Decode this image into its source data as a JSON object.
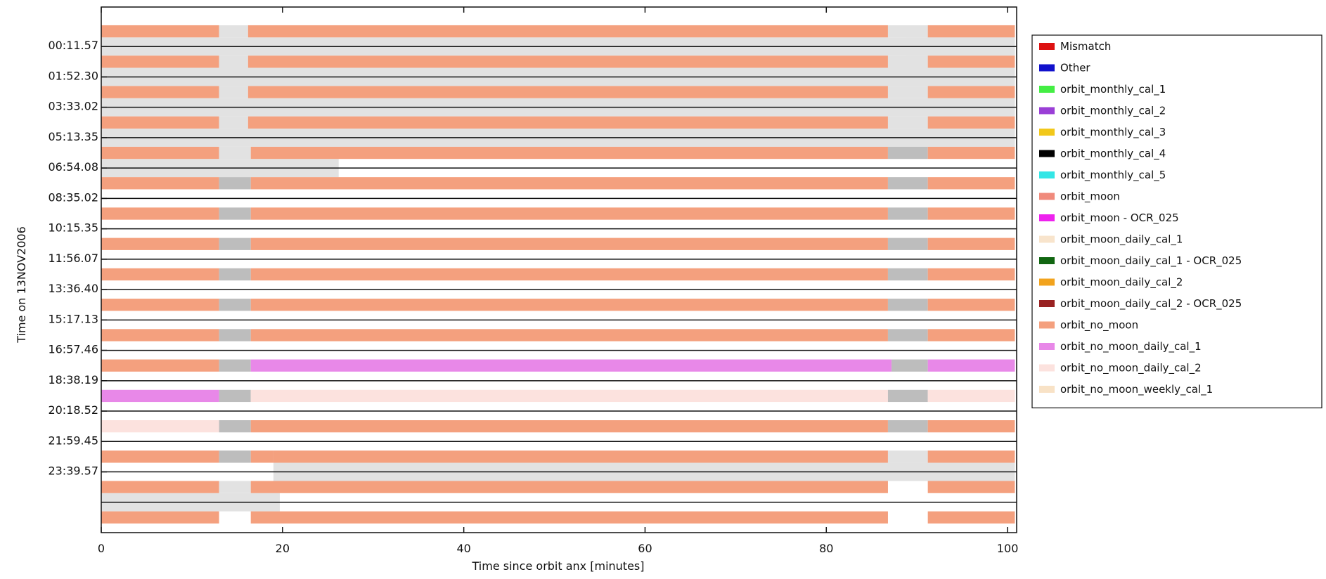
{
  "chart_data": {
    "type": "bar",
    "xlabel": "Time since orbit anx [minutes]",
    "ylabel": "Time on 13NOV2006",
    "xlim": [
      0,
      101
    ],
    "xticks": [
      "0",
      "20",
      "40",
      "60",
      "80",
      "100"
    ],
    "xtick_values": [
      0,
      20,
      40,
      60,
      80,
      100
    ],
    "yticks": [
      "00:11.57",
      "01:52.30",
      "03:33.02",
      "05:13.35",
      "06:54.08",
      "08:35.02",
      "10:15.35",
      "11:56.07",
      "13:36.40",
      "15:17.13",
      "16:57.46",
      "18:38.19",
      "20:18.52",
      "21:59.45",
      "23:39.57"
    ],
    "grid": false,
    "legend_position": "right",
    "colors": {
      "Mismatch": "#dd1111",
      "Other": "#1111cc",
      "orbit_monthly_cal_1": "#44ee44",
      "orbit_monthly_cal_2": "#9a3fd6",
      "orbit_monthly_cal_3": "#f2c81a",
      "orbit_monthly_cal_4": "#000000",
      "orbit_monthly_cal_5": "#33e6e6",
      "orbit_moon": "#f08a7c",
      "orbit_moon - OCR_025": "#ee22ee",
      "orbit_moon_daily_cal_1": "#f8e4cc",
      "orbit_moon_daily_cal_1 - OCR_025": "#116611",
      "orbit_moon_daily_cal_2": "#f2a31d",
      "orbit_moon_daily_cal_2 - OCR_025": "#992222",
      "orbit_no_moon": "#f4a07e",
      "orbit_no_moon_daily_cal_1": "#e888e8",
      "orbit_no_moon_daily_cal_2": "#fce2de",
      "orbit_no_moon_weekly_cal_1": "#f8e2c6",
      "gap_light": "#e2e2e2",
      "gap_dark": "#bdbdbd"
    },
    "legend": [
      "Mismatch",
      "Other",
      "orbit_monthly_cal_1",
      "orbit_monthly_cal_2",
      "orbit_monthly_cal_3",
      "orbit_monthly_cal_4",
      "orbit_monthly_cal_5",
      "orbit_moon",
      "orbit_moon - OCR_025",
      "orbit_moon_daily_cal_1",
      "orbit_moon_daily_cal_1 - OCR_025",
      "orbit_moon_daily_cal_2",
      "orbit_moon_daily_cal_2 - OCR_025",
      "orbit_no_moon",
      "orbit_no_moon_daily_cal_1",
      "orbit_no_moon_daily_cal_2",
      "orbit_no_moon_weekly_cal_1"
    ],
    "orbits": [
      {
        "segments": [
          [
            0,
            13,
            "orbit_no_moon"
          ],
          [
            13,
            16.2,
            "gap_light"
          ],
          [
            16.2,
            86.8,
            "orbit_no_moon"
          ],
          [
            86.8,
            91.2,
            "gap_light"
          ],
          [
            91.2,
            100.8,
            "orbit_no_moon"
          ]
        ]
      },
      {
        "segments": [
          [
            0,
            13,
            "orbit_no_moon"
          ],
          [
            13,
            16.2,
            "gap_light"
          ],
          [
            16.2,
            86.8,
            "orbit_no_moon"
          ],
          [
            86.8,
            91.2,
            "gap_light"
          ],
          [
            91.2,
            100.8,
            "orbit_no_moon"
          ]
        ]
      },
      {
        "segments": [
          [
            0,
            13,
            "orbit_no_moon"
          ],
          [
            13,
            16.2,
            "gap_light"
          ],
          [
            16.2,
            86.8,
            "orbit_no_moon"
          ],
          [
            86.8,
            91.2,
            "gap_light"
          ],
          [
            91.2,
            100.8,
            "orbit_no_moon"
          ]
        ]
      },
      {
        "segments": [
          [
            0,
            13,
            "orbit_no_moon"
          ],
          [
            13,
            16.2,
            "gap_light"
          ],
          [
            16.2,
            86.8,
            "orbit_no_moon"
          ],
          [
            86.8,
            91.2,
            "gap_light"
          ],
          [
            91.2,
            100.8,
            "orbit_no_moon"
          ]
        ]
      },
      {
        "segments": [
          [
            0,
            13,
            "orbit_no_moon"
          ],
          [
            13,
            16.5,
            "gap_light"
          ],
          [
            16.5,
            86.8,
            "orbit_no_moon"
          ],
          [
            86.8,
            91.2,
            "gap_dark"
          ],
          [
            91.2,
            100.8,
            "orbit_no_moon"
          ]
        ]
      },
      {
        "segments": [
          [
            0,
            13,
            "orbit_no_moon"
          ],
          [
            13,
            16.5,
            "gap_dark"
          ],
          [
            16.5,
            86.8,
            "orbit_no_moon"
          ],
          [
            86.8,
            91.2,
            "gap_dark"
          ],
          [
            91.2,
            100.8,
            "orbit_no_moon"
          ]
        ]
      },
      {
        "segments": [
          [
            0,
            13,
            "orbit_no_moon"
          ],
          [
            13,
            16.5,
            "gap_dark"
          ],
          [
            16.5,
            86.8,
            "orbit_no_moon"
          ],
          [
            86.8,
            91.2,
            "gap_dark"
          ],
          [
            91.2,
            100.8,
            "orbit_no_moon"
          ]
        ]
      },
      {
        "segments": [
          [
            0,
            13,
            "orbit_no_moon"
          ],
          [
            13,
            16.5,
            "gap_dark"
          ],
          [
            16.5,
            86.8,
            "orbit_no_moon"
          ],
          [
            86.8,
            91.2,
            "gap_dark"
          ],
          [
            91.2,
            100.8,
            "orbit_no_moon"
          ]
        ]
      },
      {
        "segments": [
          [
            0,
            13,
            "orbit_no_moon"
          ],
          [
            13,
            16.5,
            "gap_dark"
          ],
          [
            16.5,
            86.8,
            "orbit_no_moon"
          ],
          [
            86.8,
            91.2,
            "gap_dark"
          ],
          [
            91.2,
            100.8,
            "orbit_no_moon"
          ]
        ]
      },
      {
        "segments": [
          [
            0,
            13,
            "orbit_no_moon"
          ],
          [
            13,
            16.5,
            "gap_dark"
          ],
          [
            16.5,
            86.8,
            "orbit_no_moon"
          ],
          [
            86.8,
            91.2,
            "gap_dark"
          ],
          [
            91.2,
            100.8,
            "orbit_no_moon"
          ]
        ]
      },
      {
        "segments": [
          [
            0,
            13,
            "orbit_no_moon"
          ],
          [
            13,
            16.5,
            "gap_dark"
          ],
          [
            16.5,
            86.8,
            "orbit_no_moon"
          ],
          [
            86.8,
            91.2,
            "gap_dark"
          ],
          [
            91.2,
            100.8,
            "orbit_no_moon"
          ]
        ]
      },
      {
        "segments": [
          [
            0,
            13,
            "orbit_no_moon"
          ],
          [
            13,
            16.5,
            "gap_dark"
          ],
          [
            16.5,
            87.2,
            "orbit_no_moon_daily_cal_1"
          ],
          [
            87.2,
            91.2,
            "gap_dark"
          ],
          [
            91.2,
            100.8,
            "orbit_no_moon_daily_cal_1"
          ]
        ]
      },
      {
        "segments": [
          [
            0,
            13,
            "orbit_no_moon_daily_cal_1"
          ],
          [
            13,
            16.5,
            "gap_dark"
          ],
          [
            16.5,
            86.8,
            "orbit_no_moon_daily_cal_2"
          ],
          [
            86.8,
            91.2,
            "gap_dark"
          ],
          [
            91.2,
            100.8,
            "orbit_no_moon_daily_cal_2"
          ]
        ]
      },
      {
        "segments": [
          [
            0,
            13,
            "orbit_no_moon_daily_cal_2"
          ],
          [
            13,
            16.5,
            "gap_dark"
          ],
          [
            16.5,
            86.8,
            "orbit_no_moon"
          ],
          [
            86.8,
            91.2,
            "gap_dark"
          ],
          [
            91.2,
            100.8,
            "orbit_no_moon"
          ]
        ]
      },
      {
        "segments": [
          [
            0,
            13,
            "orbit_no_moon"
          ],
          [
            13,
            16.5,
            "gap_dark"
          ],
          [
            16.5,
            19,
            "orbit_no_moon"
          ],
          [
            19,
            86.8,
            "orbit_no_moon"
          ],
          [
            86.8,
            91.2,
            "gap_light"
          ],
          [
            91.2,
            100.8,
            "orbit_no_moon"
          ]
        ]
      },
      {
        "segments": [
          [
            0,
            13,
            "orbit_no_moon"
          ],
          [
            13,
            16.5,
            "gap_light"
          ],
          [
            16.5,
            86.8,
            "orbit_no_moon"
          ],
          [
            91.2,
            100.8,
            "orbit_no_moon"
          ]
        ]
      },
      {
        "segments": [
          [
            0,
            13,
            "orbit_no_moon"
          ],
          [
            16.5,
            86.8,
            "orbit_no_moon"
          ],
          [
            91.2,
            100.8,
            "orbit_no_moon"
          ]
        ]
      }
    ],
    "fill_segments": [
      {
        "orbit": 0,
        "x": [
          88.8,
          100.8
        ],
        "series": "gap_light"
      },
      {
        "orbit": 0,
        "x": [
          0,
          100.8
        ],
        "series": "gap_light"
      },
      {
        "orbit": 1,
        "x": [
          0,
          100.8
        ],
        "series": "gap_light"
      },
      {
        "orbit": 2,
        "x": [
          0,
          100.8
        ],
        "series": "gap_light"
      },
      {
        "orbit": 3,
        "x": [
          0,
          100.8
        ],
        "series": "gap_light"
      },
      {
        "orbit": 4,
        "x": [
          0,
          26.2
        ],
        "series": "gap_light"
      },
      {
        "orbit": 14,
        "x": [
          19,
          100.8
        ],
        "series": "gap_light"
      },
      {
        "orbit": 15,
        "x": [
          0,
          19.7
        ],
        "series": "gap_light"
      }
    ]
  }
}
